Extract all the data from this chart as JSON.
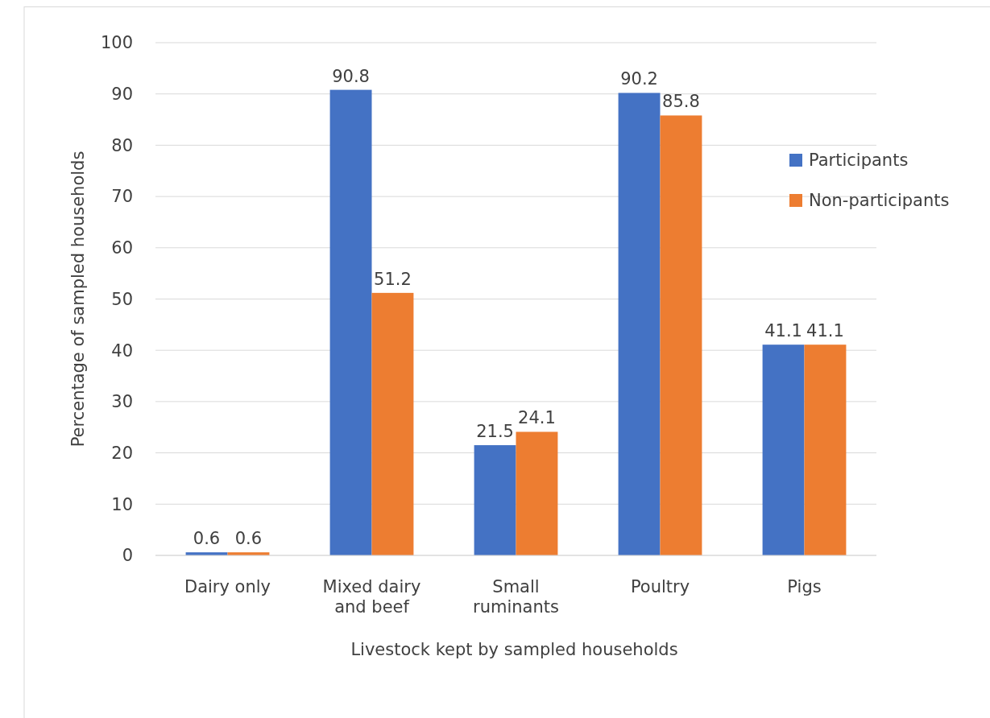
{
  "chart_data": {
    "type": "bar",
    "xlabel": "Livestock kept by sampled households",
    "ylabel": "Percentage of sampled households",
    "categories": [
      "Dairy only",
      "Mixed dairy and beef",
      "Small ruminants",
      "Poultry",
      "Pigs"
    ],
    "series": [
      {
        "name": "Participants",
        "color": "#4472c4",
        "values": [
          0.6,
          90.8,
          21.5,
          90.2,
          41.1
        ]
      },
      {
        "name": "Non-participants",
        "color": "#ed7d31",
        "values": [
          0.6,
          51.2,
          24.1,
          85.8,
          41.1
        ]
      }
    ],
    "ylim": [
      0,
      100
    ],
    "yticks": [
      0,
      10,
      20,
      30,
      40,
      50,
      60,
      70,
      80,
      90,
      100
    ],
    "grid": "y",
    "legend": "right",
    "data_labels": true
  }
}
